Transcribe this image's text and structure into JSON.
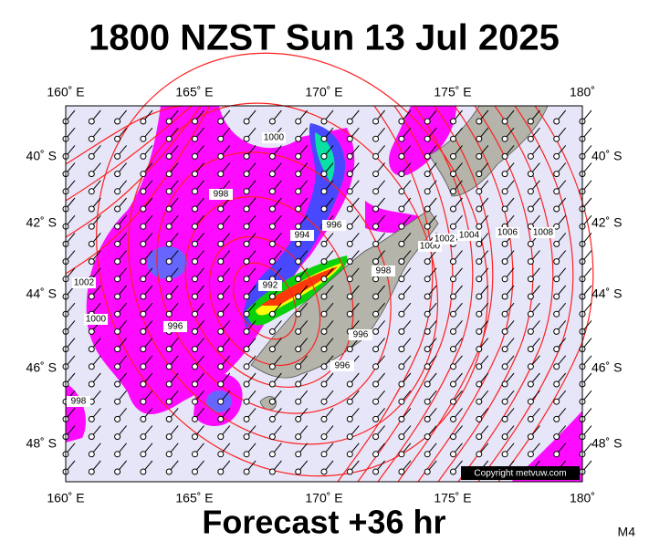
{
  "header": {
    "title": "1800 NZST Sun 13 Jul 2025"
  },
  "footer": {
    "forecast": "Forecast +36 hr",
    "model": "M4"
  },
  "copyright": "Copyright metvuw.com",
  "longitude_labels": [
    "160˚ E",
    "165˚ E",
    "170˚ E",
    "175˚ E",
    "180˚"
  ],
  "latitude_labels": [
    "40˚ S",
    "42˚ S",
    "44˚ S",
    "46˚ S",
    "48˚ S"
  ],
  "isobar_labels": [
    "1000",
    "998",
    "996",
    "994",
    "992",
    "1002",
    "1000",
    "996",
    "998",
    "1000",
    "1002",
    "1004",
    "1006",
    "1008",
    "996",
    "996",
    "998"
  ]
}
